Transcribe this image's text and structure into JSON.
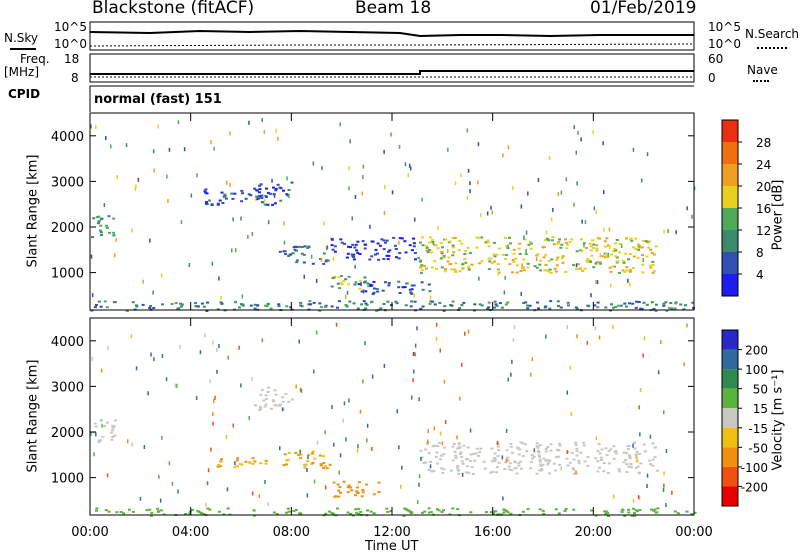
{
  "header": {
    "station": "Blackstone (fitACF)",
    "beam": "Beam 18",
    "date": "01/Feb/2019"
  },
  "top_panels": {
    "nsky_label": "N.Sky",
    "nsearch_label": "N.Search",
    "noise_ticks": [
      "10^5",
      "10^0"
    ],
    "freq_label_line1": "Freq.",
    "freq_label_line2": "[MHz]",
    "freq_ticks": [
      18,
      8
    ],
    "nave_label": "Nave",
    "nave_ticks": [
      60,
      0
    ],
    "cpid_label": "CPID",
    "cpid_value": "normal (fast) 151"
  },
  "x_axis": {
    "label": "Time UT",
    "ticks": [
      "00:00",
      "04:00",
      "08:00",
      "12:00",
      "16:00",
      "20:00",
      "00:00"
    ],
    "range_hours": [
      0,
      24
    ]
  },
  "power_panel": {
    "ylabel": "Slant Range [km]",
    "yticks": [
      1000,
      2000,
      3000,
      4000
    ],
    "yrange": [
      180,
      4500
    ],
    "colorbar_label": "Power [dB]",
    "colorbar_ticks": [
      4,
      8,
      12,
      16,
      20,
      24,
      28
    ],
    "colors": [
      "#1d1df0",
      "#2f4fb4",
      "#3a8a6e",
      "#4fa95a",
      "#e8d020",
      "#f0a020",
      "#f07010",
      "#e83010",
      "#e80000"
    ]
  },
  "velocity_panel": {
    "ylabel": "Slant Range [km]",
    "yticks": [
      1000,
      2000,
      3000,
      4000
    ],
    "yrange": [
      180,
      4500
    ],
    "colorbar_label": "Velocity [m s⁻¹]",
    "colorbar_ticks": [
      "200",
      "100",
      "50",
      "15",
      "-15",
      "-50",
      "-100",
      "-200"
    ],
    "colors": [
      "#2828c8",
      "#2e6aa0",
      "#2e8a50",
      "#5ab43c",
      "#c8c8c0",
      "#f0c010",
      "#f09010",
      "#f05010",
      "#e80000"
    ]
  },
  "chart_data": {
    "type": "heatmap",
    "x_unit": "hours UT",
    "power_regions": [
      {
        "t": [
          0.0,
          1.0
        ],
        "r": [
          1800,
          2300
        ],
        "db": 12
      },
      {
        "t": [
          4.5,
          7.0
        ],
        "r": [
          2500,
          2900
        ],
        "db": 6
      },
      {
        "t": [
          6.5,
          8.0
        ],
        "r": [
          2500,
          3000
        ],
        "db": 5
      },
      {
        "t": [
          7.5,
          9.5
        ],
        "r": [
          1200,
          1600
        ],
        "db": 8
      },
      {
        "t": [
          9.5,
          13.0
        ],
        "r": [
          1300,
          1800
        ],
        "db": 4
      },
      {
        "t": [
          9.5,
          11.5
        ],
        "r": [
          650,
          950
        ],
        "db": 14
      },
      {
        "t": [
          10.5,
          13.5
        ],
        "r": [
          550,
          850
        ],
        "db": 6
      },
      {
        "t": [
          13.0,
          22.5
        ],
        "r": [
          1000,
          1800
        ],
        "db": 18
      },
      {
        "t": [
          0.0,
          24.0
        ],
        "r": [
          180,
          400
        ],
        "db": 9
      }
    ],
    "velocity_regions": [
      {
        "t": [
          0.0,
          1.0
        ],
        "r": [
          1800,
          2300
        ],
        "v": 0
      },
      {
        "t": [
          6.5,
          8.0
        ],
        "r": [
          2500,
          3000
        ],
        "v": 0
      },
      {
        "t": [
          5.0,
          7.0
        ],
        "r": [
          1250,
          1450
        ],
        "v": -50
      },
      {
        "t": [
          7.5,
          9.5
        ],
        "r": [
          1200,
          1600
        ],
        "v": -50
      },
      {
        "t": [
          9.5,
          11.5
        ],
        "r": [
          600,
          950
        ],
        "v": -60
      },
      {
        "t": [
          13.0,
          22.5
        ],
        "r": [
          1100,
          1800
        ],
        "v": 0
      },
      {
        "t": [
          0.0,
          24.0
        ],
        "r": [
          180,
          350
        ],
        "v": 40
      }
    ]
  }
}
